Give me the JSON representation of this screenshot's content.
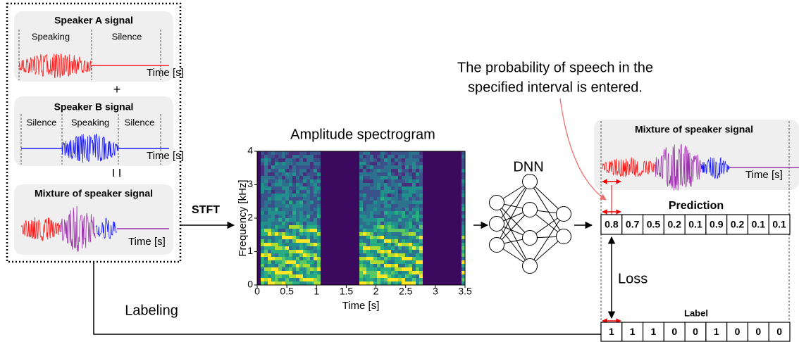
{
  "speaker_a": {
    "title": "Speaker A signal",
    "regions": [
      "Speaking",
      "Silence"
    ],
    "axis": "Time [s]"
  },
  "plus": "+",
  "speaker_b": {
    "title": "Speaker B signal",
    "regions": [
      "Silence",
      "Speaking",
      "Silence"
    ],
    "axis": "Time [s]"
  },
  "mixture": {
    "title": "Mixture of speaker signal",
    "axis": "Time [s]"
  },
  "stft": "STFT",
  "spectrogram": {
    "title": "Amplitude spectrogram",
    "ylabel": "Frequency [kHz]",
    "yticks": [
      0,
      1,
      2,
      3,
      4
    ],
    "xlabel": "Time [s]",
    "xticks": [
      0,
      0.5,
      1,
      1.5,
      2,
      2.5,
      3,
      3.5
    ]
  },
  "dnn": "DNN",
  "annotation": [
    "The probability of speech in the",
    "specified interval is entered."
  ],
  "output_mixture": {
    "title": "Mixture of speaker signal",
    "axis": "Time [s]"
  },
  "prediction": {
    "title": "Prediction",
    "values": [
      0.8,
      0.7,
      0.5,
      0.2,
      0.1,
      0.9,
      0.2,
      0.1,
      0.1
    ]
  },
  "loss": "Loss",
  "label": {
    "title": "Label",
    "values": [
      1,
      1,
      1,
      0,
      0,
      1,
      0,
      0,
      0
    ]
  },
  "labeling": "Labeling"
}
